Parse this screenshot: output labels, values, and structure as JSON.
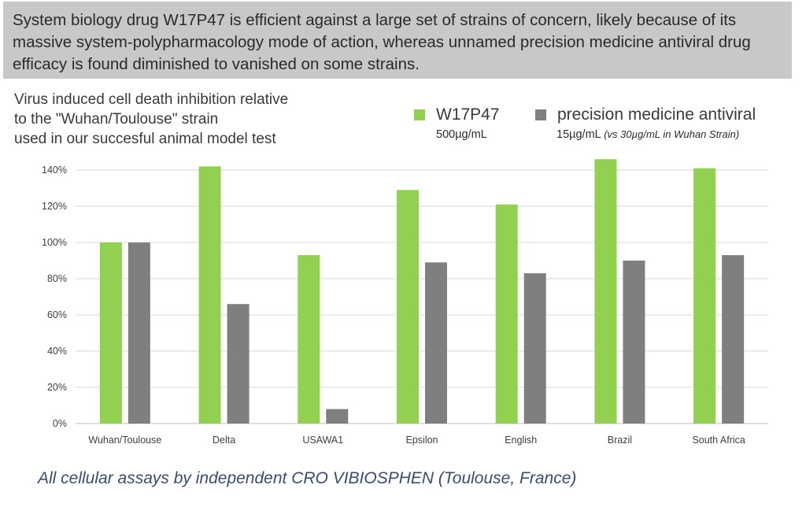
{
  "banner": {
    "text": "System biology drug W17P47 is efficient against a large set of strains of concern, likely because of its massive system-polypharmacology mode of action, whereas unnamed precision medicine antiviral drug efficacy is found diminished to vanished on some strains."
  },
  "subtitle": {
    "line1": "Virus induced cell death inhibition relative",
    "line2": "to the \"Wuhan/Toulouse\" strain",
    "line3": "used in our succesful animal model test"
  },
  "legend": {
    "w17p47": {
      "name": "W17P47",
      "note": "500µg/mL"
    },
    "antiviral": {
      "name": "precision medicine antiviral",
      "note": "15µg/mL",
      "note_italic": "(vs 30µg/mL in Wuhan Strain)"
    }
  },
  "footer": "All cellular assays by independent CRO VIBIOSPHEN (Toulouse, France)",
  "colors": {
    "w17p47": "#92d050",
    "antiviral": "#7f7f7f",
    "grid": "#d9d9d9"
  },
  "chart_data": {
    "type": "bar",
    "categories": [
      "Wuhan/Toulouse",
      "Delta",
      "USAWA1",
      "Epsilon",
      "English",
      "Brazil",
      "South Africa"
    ],
    "series": [
      {
        "name": "W17P47",
        "values": [
          100,
          142,
          93,
          129,
          121,
          146,
          141
        ]
      },
      {
        "name": "precision medicine antiviral",
        "values": [
          100,
          66,
          8,
          89,
          83,
          90,
          93
        ]
      }
    ],
    "ylim": [
      0,
      140
    ],
    "yticks": [
      "0%",
      "20%",
      "40%",
      "60%",
      "80%",
      "100%",
      "120%",
      "140%"
    ],
    "grid": true
  }
}
